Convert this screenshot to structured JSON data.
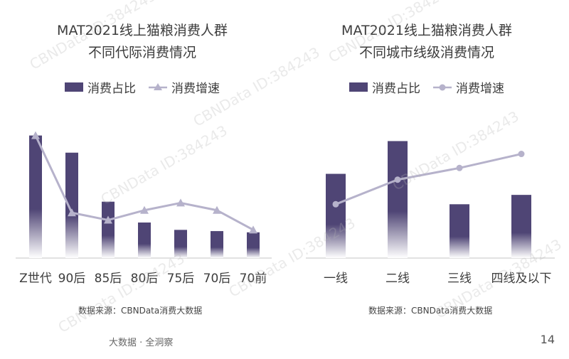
{
  "chart_data": [
    {
      "type": "bar",
      "title": "MAT2021线上猫粮消费人群",
      "subtitle": "不同代际消费情况",
      "categories": [
        "Z世代",
        "90后",
        "85后",
        "80后",
        "75后",
        "70后",
        "70前"
      ],
      "series": [
        {
          "name": "消费占比",
          "type": "bar",
          "values": [
            100,
            86,
            46,
            29,
            23,
            22,
            21
          ]
        },
        {
          "name": "消费增速",
          "type": "line",
          "marker": "triangle",
          "values": [
            100,
            37,
            31,
            39,
            45,
            39,
            23
          ]
        }
      ],
      "ylim": [
        0,
        105
      ],
      "grid": false,
      "legend": "top-center",
      "source": "数据来源：CBNData消费大数据"
    },
    {
      "type": "bar",
      "title": "MAT2021线上猫粮消费人群",
      "subtitle": "不同城市线级消费情况",
      "categories": [
        "一线",
        "二线",
        "三线",
        "四线及以下"
      ],
      "series": [
        {
          "name": "消费占比",
          "type": "bar",
          "values": [
            72,
            100,
            46,
            54
          ]
        },
        {
          "name": "消费增速",
          "type": "line",
          "marker": "circle",
          "values": [
            46,
            67,
            77,
            89
          ]
        }
      ],
      "ylim": [
        0,
        110
      ],
      "grid": false,
      "legend": "top-center",
      "source": "数据来源：CBNData消费大数据"
    }
  ],
  "colors": {
    "bar": "#4f4575",
    "line": "#b6b2cb"
  },
  "footer": {
    "left_text": "大数据 · 全洞察",
    "page_number": "14"
  },
  "watermark": "CBNData ID:384243"
}
